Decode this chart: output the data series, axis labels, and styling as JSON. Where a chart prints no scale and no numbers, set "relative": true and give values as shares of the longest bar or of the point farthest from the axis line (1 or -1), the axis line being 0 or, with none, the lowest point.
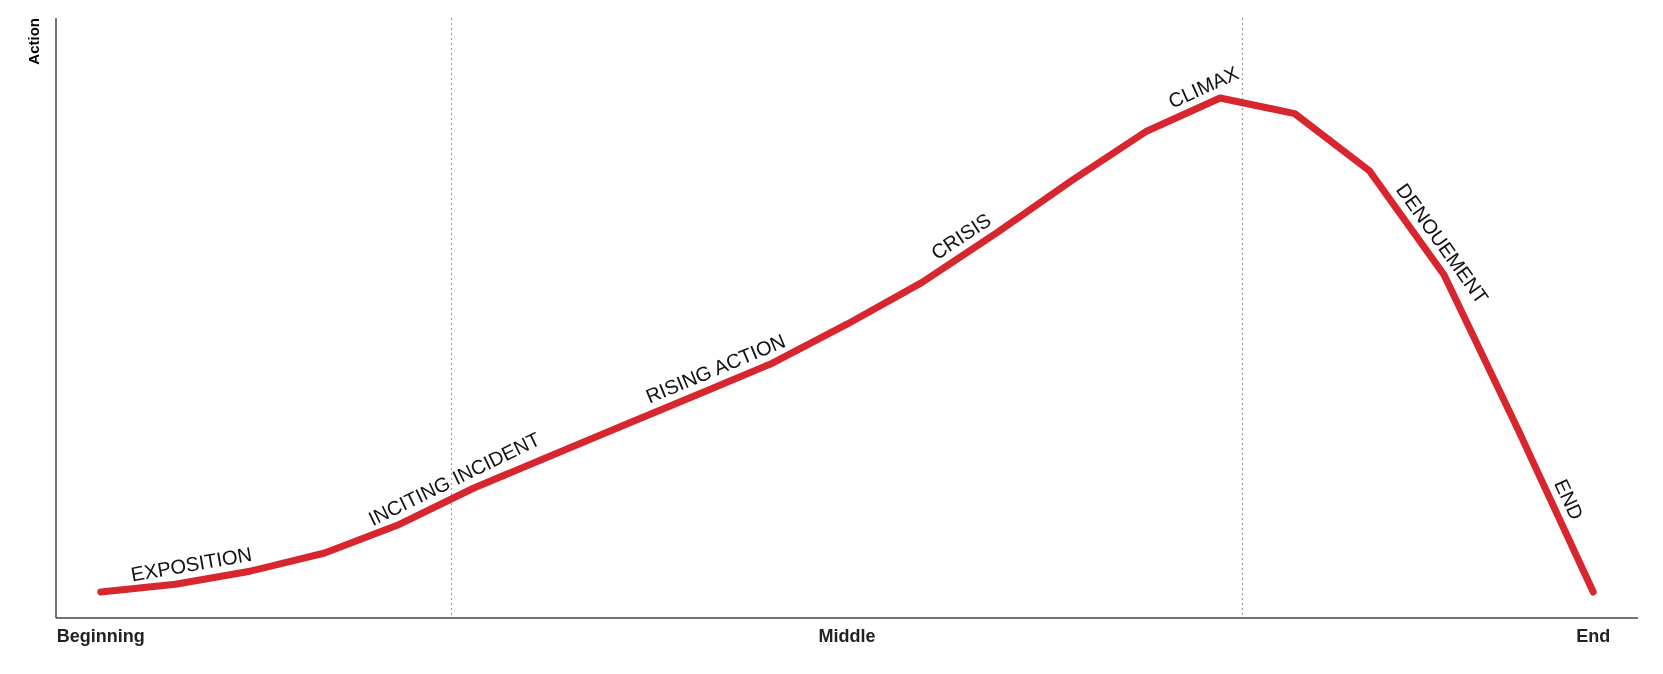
{
  "chart_data": {
    "type": "line",
    "relative": true,
    "ylabel": "Action",
    "categories": [
      "Beginning",
      null,
      null,
      null,
      null,
      null,
      null,
      null,
      null,
      null,
      "Middle",
      null,
      null,
      null,
      null,
      null,
      null,
      null,
      null,
      null,
      "End"
    ],
    "series": [
      {
        "color": "#d7262e",
        "values": [
          0.05,
          0.065,
          0.09,
          0.125,
          0.18,
          0.25,
          0.31,
          0.37,
          0.43,
          0.49,
          0.565,
          0.645,
          0.74,
          0.84,
          0.935,
          1,
          0.97,
          0.86,
          0.66,
          0.36,
          0.05
        ]
      }
    ],
    "annotations": [
      "EXPOSITION",
      "INCITING INCIDENT",
      "RISING ACTION",
      "CRISIS",
      "CLIMAX",
      "DENOUEMENT",
      "END"
    ],
    "line_style": "solid",
    "marker": "none"
  }
}
